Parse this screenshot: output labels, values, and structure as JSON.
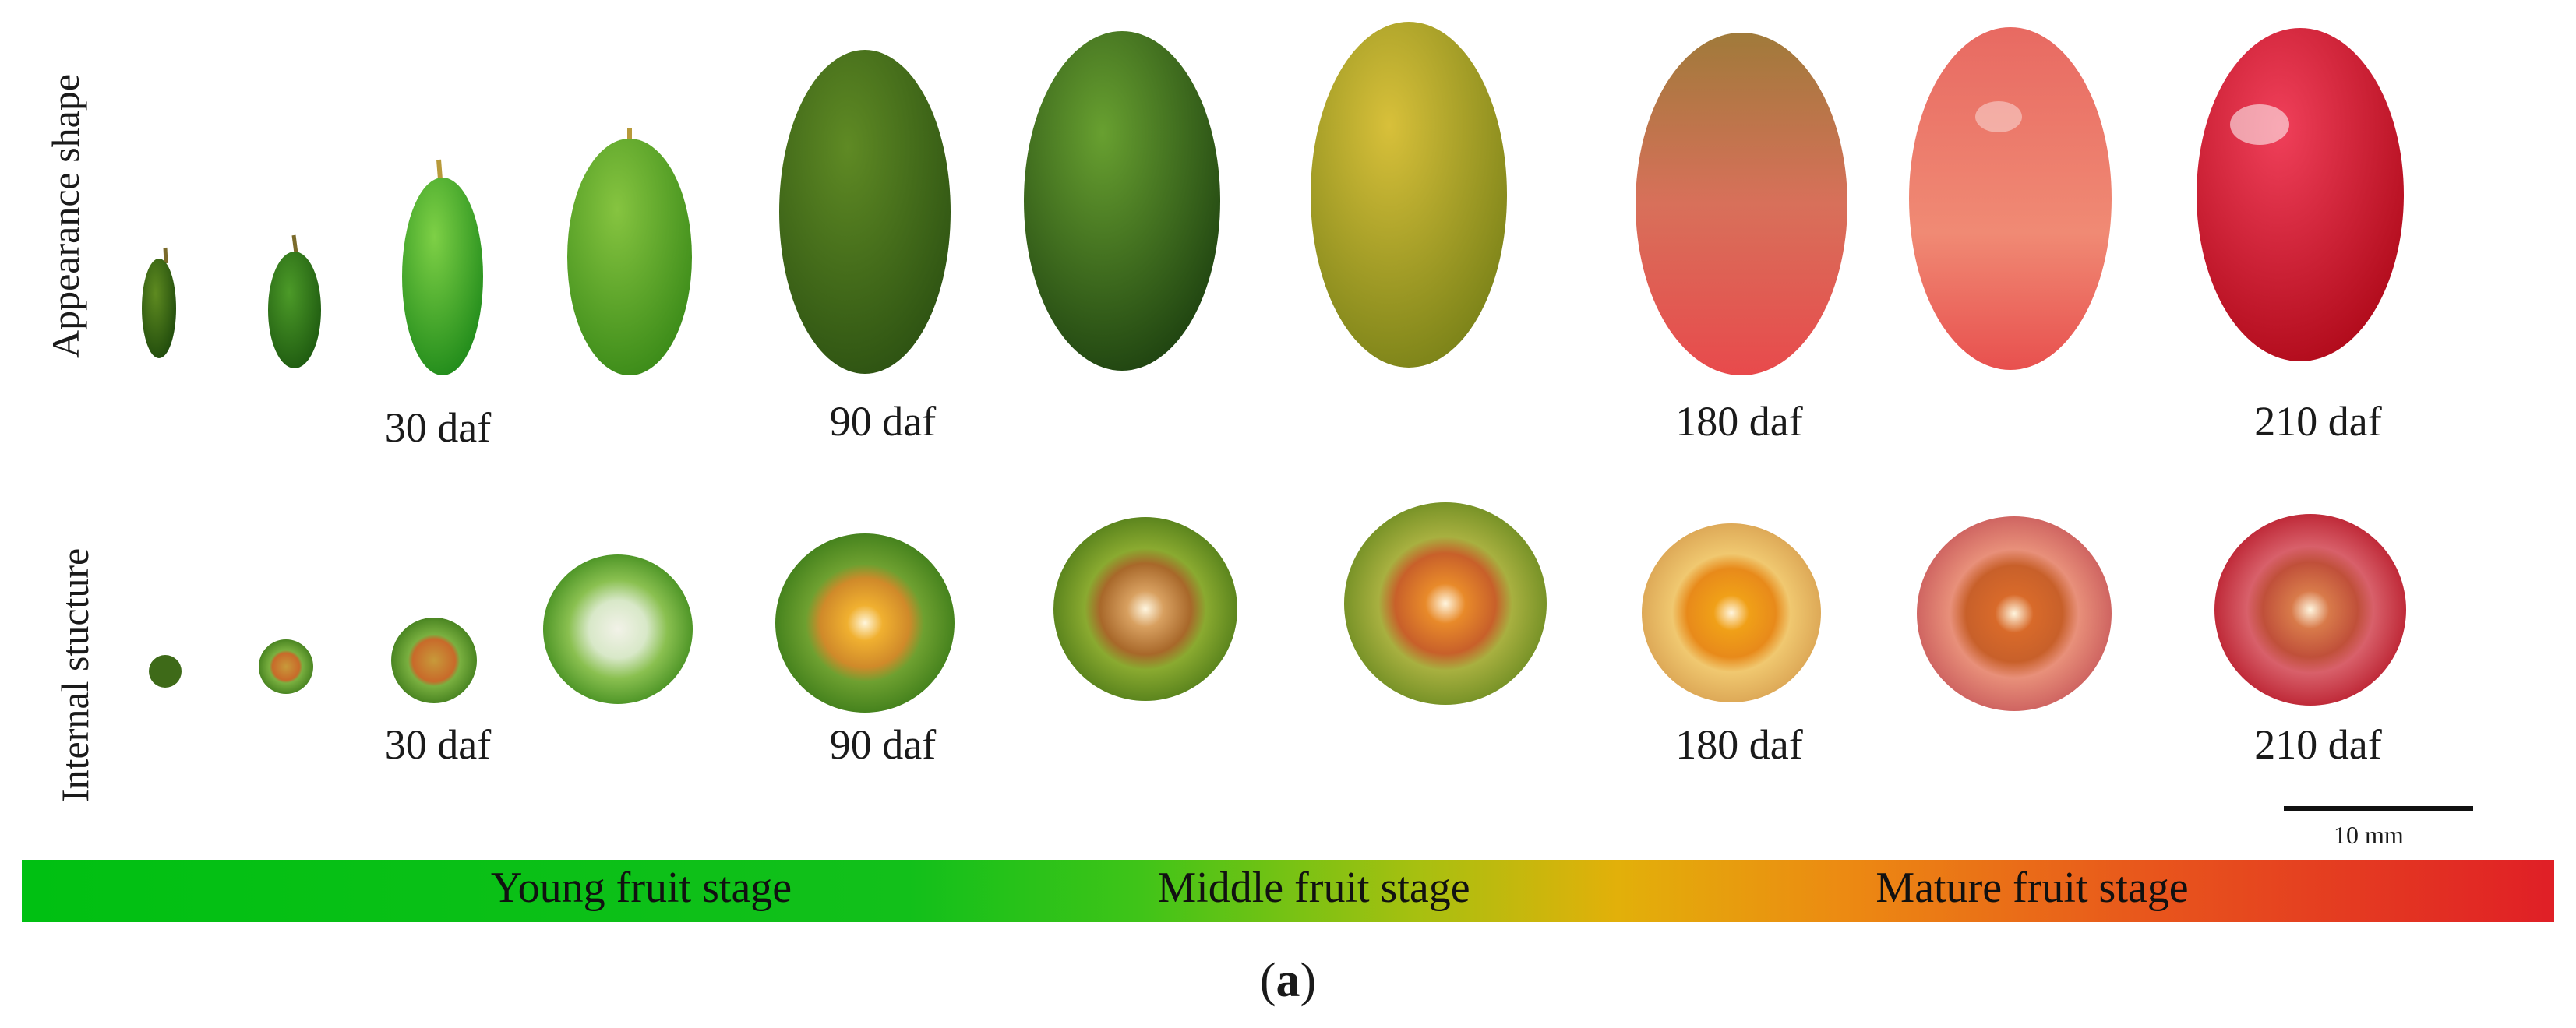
{
  "row_labels": {
    "appearance": "Appearance shape",
    "internal": "Internal stucture"
  },
  "appearance_daf": [
    "30 daf",
    "90 daf",
    "180 daf",
    "210 daf"
  ],
  "internal_daf": [
    "30 daf",
    "90 daf",
    "180 daf",
    "210 daf"
  ],
  "stages": {
    "young": "Young fruit stage",
    "middle": "Middle fruit stage",
    "mature": "Mature fruit stage"
  },
  "scale_bar": "10 mm",
  "caption": {
    "open": "(",
    "letter": "a",
    "close": ")"
  },
  "colors": {
    "young_green": "#22a024",
    "middle_olive": "#a8a21c",
    "mature_red": "#d01a2a"
  }
}
